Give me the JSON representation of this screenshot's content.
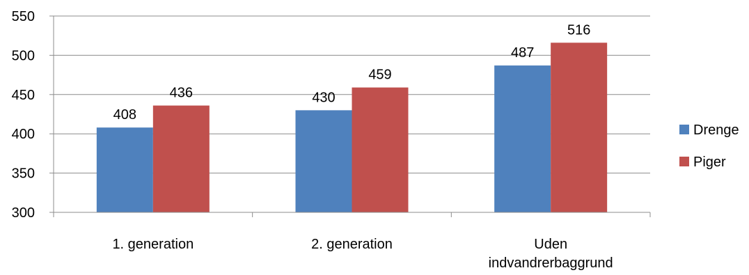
{
  "chart_data": {
    "type": "bar",
    "title": "",
    "xlabel": "",
    "ylabel": "",
    "categories": [
      "1. generation",
      "2. generation",
      "Uden indvandrerbaggrund"
    ],
    "category_lines": [
      [
        "1. generation"
      ],
      [
        "2. generation"
      ],
      [
        "Uden",
        "indvandrerbaggrund"
      ]
    ],
    "series": [
      {
        "name": "Drenge",
        "values": [
          408,
          430,
          487
        ],
        "color": "#4F81BD"
      },
      {
        "name": "Piger",
        "values": [
          436,
          459,
          516
        ],
        "color": "#C0504D"
      }
    ],
    "ylim": [
      300,
      550
    ],
    "yticks": [
      300,
      350,
      400,
      450,
      500,
      550
    ],
    "grid": true,
    "legend_position": "right",
    "data_labels": true
  }
}
